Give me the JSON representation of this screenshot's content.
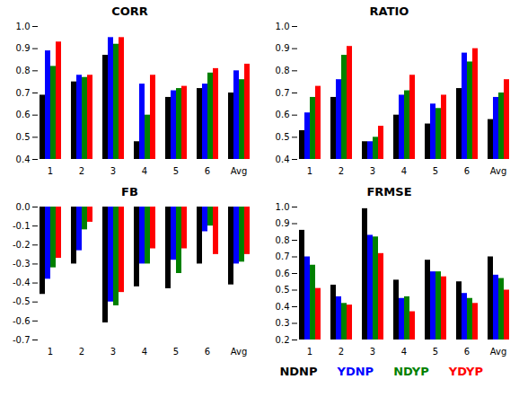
{
  "chart_data": [
    {
      "type": "bar",
      "title": "CORR",
      "categories": [
        "1",
        "2",
        "3",
        "4",
        "5",
        "6",
        "Avg"
      ],
      "series": [
        {
          "name": "NDNP",
          "color": "black",
          "values": [
            0.69,
            0.75,
            0.87,
            0.48,
            0.68,
            0.72,
            0.7
          ]
        },
        {
          "name": "YDNP",
          "color": "blue",
          "values": [
            0.89,
            0.78,
            0.95,
            0.74,
            0.71,
            0.74,
            0.8
          ]
        },
        {
          "name": "NDYP",
          "color": "green",
          "values": [
            0.82,
            0.77,
            0.92,
            0.6,
            0.72,
            0.79,
            0.76
          ]
        },
        {
          "name": "YDYP",
          "color": "red",
          "values": [
            0.93,
            0.78,
            0.95,
            0.78,
            0.73,
            0.81,
            0.83
          ]
        }
      ],
      "ylim": [
        0.4,
        1.0
      ],
      "yticks": [
        0.4,
        0.5,
        0.6,
        0.7,
        0.8,
        0.9,
        {
          "value": 1.0,
          "label": "1.0"
        }
      ]
    },
    {
      "type": "bar",
      "title": "RATIO",
      "categories": [
        "1",
        "2",
        "3",
        "4",
        "5",
        "6",
        "Avg"
      ],
      "series": [
        {
          "name": "NDNP",
          "color": "black",
          "values": [
            0.53,
            0.68,
            0.48,
            0.6,
            0.56,
            0.72,
            0.58
          ]
        },
        {
          "name": "YDNP",
          "color": "blue",
          "values": [
            0.61,
            0.76,
            0.48,
            0.69,
            0.65,
            0.88,
            0.68
          ]
        },
        {
          "name": "NDYP",
          "color": "green",
          "values": [
            0.68,
            0.87,
            0.5,
            0.71,
            0.63,
            0.84,
            0.7
          ]
        },
        {
          "name": "YDYP",
          "color": "red",
          "values": [
            0.73,
            0.91,
            0.55,
            0.78,
            0.69,
            0.9,
            0.76
          ]
        }
      ],
      "ylim": [
        0.4,
        1.0
      ],
      "yticks": [
        0.4,
        0.5,
        0.6,
        0.7,
        0.8,
        0.9,
        {
          "value": 1.0,
          "label": "1.0"
        }
      ]
    },
    {
      "type": "bar",
      "title": "FB",
      "categories": [
        "1",
        "2",
        "3",
        "4",
        "5",
        "6",
        "Avg"
      ],
      "series": [
        {
          "name": "NDNP",
          "color": "black",
          "values": [
            -0.46,
            -0.3,
            -0.61,
            -0.42,
            -0.43,
            -0.3,
            -0.41
          ]
        },
        {
          "name": "YDNP",
          "color": "blue",
          "values": [
            -0.38,
            -0.23,
            -0.5,
            -0.3,
            -0.28,
            -0.13,
            -0.3
          ]
        },
        {
          "name": "NDYP",
          "color": "green",
          "values": [
            -0.32,
            -0.12,
            -0.52,
            -0.3,
            -0.35,
            -0.1,
            -0.29
          ]
        },
        {
          "name": "YDYP",
          "color": "red",
          "values": [
            -0.27,
            -0.08,
            -0.45,
            -0.22,
            -0.22,
            -0.25,
            -0.25
          ]
        }
      ],
      "ylim": [
        -0.7,
        0.0
      ],
      "yticks": [
        -0.7,
        -0.6,
        -0.5,
        -0.4,
        -0.3,
        -0.2,
        -0.1,
        {
          "value": 0.0,
          "label": "0.0"
        }
      ]
    },
    {
      "type": "bar",
      "title": "FRMSE",
      "categories": [
        "1",
        "2",
        "3",
        "4",
        "5",
        "6",
        "Avg"
      ],
      "series": [
        {
          "name": "NDNP",
          "color": "black",
          "values": [
            0.86,
            0.53,
            0.99,
            0.56,
            0.68,
            0.55,
            0.7
          ]
        },
        {
          "name": "YDNP",
          "color": "blue",
          "values": [
            0.7,
            0.46,
            0.83,
            0.45,
            0.61,
            0.48,
            0.59
          ]
        },
        {
          "name": "NDYP",
          "color": "green",
          "values": [
            0.65,
            0.42,
            0.82,
            0.46,
            0.61,
            0.45,
            0.57
          ]
        },
        {
          "name": "YDYP",
          "color": "red",
          "values": [
            0.51,
            0.41,
            0.72,
            0.37,
            0.58,
            0.42,
            0.5
          ]
        }
      ],
      "ylim": [
        0.2,
        1.0
      ],
      "yticks": [
        0.2,
        0.3,
        0.4,
        0.5,
        0.6,
        0.7,
        0.8,
        0.9,
        {
          "value": 1.0,
          "label": "1.0"
        }
      ],
      "legend": "bottom"
    }
  ]
}
